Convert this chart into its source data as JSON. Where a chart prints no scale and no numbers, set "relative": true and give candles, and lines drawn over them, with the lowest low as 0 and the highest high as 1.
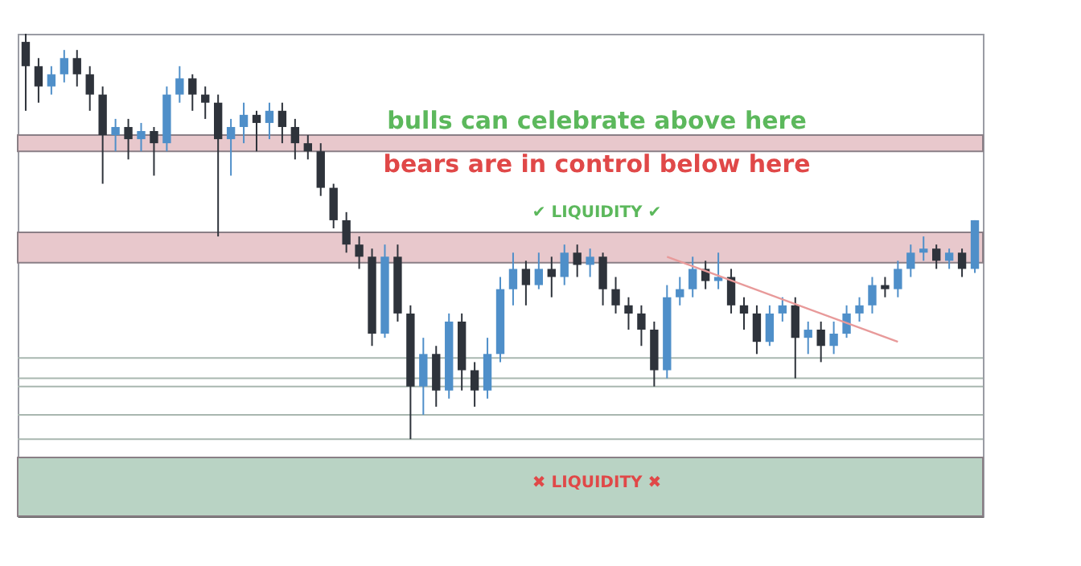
{
  "chart_data": {
    "type": "candlestick",
    "relative": true,
    "tick_labels": false,
    "grid": false,
    "categories": [
      null,
      null,
      null,
      null,
      null,
      null,
      null,
      null,
      null,
      null,
      null,
      null,
      null,
      null,
      null,
      null,
      null,
      null,
      null,
      null,
      null,
      null,
      null,
      null,
      null,
      null,
      null,
      null,
      null,
      null,
      null,
      null,
      null,
      null,
      null,
      null,
      null,
      null,
      null,
      null,
      null,
      null,
      null,
      null,
      null,
      null,
      null,
      null,
      null,
      null,
      null,
      null,
      null,
      null,
      null,
      null,
      null,
      null,
      null,
      null,
      null,
      null,
      null,
      null,
      null,
      null,
      null,
      null,
      null,
      null,
      null,
      null,
      null,
      null,
      null
    ],
    "ohlc": [
      [
        0.98,
        1.0,
        0.81,
        0.92
      ],
      [
        0.92,
        0.94,
        0.83,
        0.87
      ],
      [
        0.87,
        0.92,
        0.85,
        0.9
      ],
      [
        0.9,
        0.96,
        0.88,
        0.94
      ],
      [
        0.94,
        0.96,
        0.87,
        0.9
      ],
      [
        0.9,
        0.92,
        0.81,
        0.85
      ],
      [
        0.85,
        0.87,
        0.63,
        0.75
      ],
      [
        0.75,
        0.79,
        0.71,
        0.77
      ],
      [
        0.77,
        0.79,
        0.69,
        0.74
      ],
      [
        0.74,
        0.78,
        0.71,
        0.76
      ],
      [
        0.76,
        0.77,
        0.65,
        0.73
      ],
      [
        0.73,
        0.87,
        0.71,
        0.85
      ],
      [
        0.85,
        0.92,
        0.83,
        0.89
      ],
      [
        0.89,
        0.9,
        0.81,
        0.85
      ],
      [
        0.85,
        0.87,
        0.79,
        0.83
      ],
      [
        0.83,
        0.85,
        0.5,
        0.74
      ],
      [
        0.74,
        0.79,
        0.65,
        0.77
      ],
      [
        0.77,
        0.83,
        0.73,
        0.8
      ],
      [
        0.8,
        0.81,
        0.71,
        0.78
      ],
      [
        0.78,
        0.83,
        0.74,
        0.81
      ],
      [
        0.81,
        0.83,
        0.73,
        0.77
      ],
      [
        0.77,
        0.79,
        0.69,
        0.73
      ],
      [
        0.73,
        0.75,
        0.69,
        0.71
      ],
      [
        0.71,
        0.73,
        0.6,
        0.62
      ],
      [
        0.62,
        0.63,
        0.52,
        0.54
      ],
      [
        0.54,
        0.56,
        0.46,
        0.48
      ],
      [
        0.48,
        0.5,
        0.42,
        0.45
      ],
      [
        0.45,
        0.47,
        0.23,
        0.26
      ],
      [
        0.26,
        0.48,
        0.25,
        0.45
      ],
      [
        0.45,
        0.48,
        0.29,
        0.31
      ],
      [
        0.31,
        0.33,
        0.0,
        0.13
      ],
      [
        0.13,
        0.25,
        0.06,
        0.21
      ],
      [
        0.21,
        0.23,
        0.08,
        0.12
      ],
      [
        0.12,
        0.31,
        0.1,
        0.29
      ],
      [
        0.29,
        0.31,
        0.12,
        0.17
      ],
      [
        0.17,
        0.19,
        0.08,
        0.12
      ],
      [
        0.12,
        0.25,
        0.1,
        0.21
      ],
      [
        0.21,
        0.4,
        0.19,
        0.37
      ],
      [
        0.37,
        0.46,
        0.33,
        0.42
      ],
      [
        0.42,
        0.44,
        0.33,
        0.38
      ],
      [
        0.38,
        0.46,
        0.37,
        0.42
      ],
      [
        0.42,
        0.45,
        0.35,
        0.4
      ],
      [
        0.4,
        0.48,
        0.38,
        0.46
      ],
      [
        0.46,
        0.48,
        0.4,
        0.43
      ],
      [
        0.43,
        0.47,
        0.4,
        0.45
      ],
      [
        0.45,
        0.46,
        0.33,
        0.37
      ],
      [
        0.37,
        0.4,
        0.31,
        0.33
      ],
      [
        0.33,
        0.35,
        0.27,
        0.31
      ],
      [
        0.31,
        0.33,
        0.23,
        0.27
      ],
      [
        0.27,
        0.29,
        0.13,
        0.17
      ],
      [
        0.17,
        0.38,
        0.15,
        0.35
      ],
      [
        0.35,
        0.4,
        0.33,
        0.37
      ],
      [
        0.37,
        0.45,
        0.35,
        0.42
      ],
      [
        0.42,
        0.44,
        0.37,
        0.39
      ],
      [
        0.39,
        0.46,
        0.37,
        0.4
      ],
      [
        0.4,
        0.42,
        0.31,
        0.33
      ],
      [
        0.33,
        0.35,
        0.27,
        0.31
      ],
      [
        0.31,
        0.33,
        0.21,
        0.24
      ],
      [
        0.24,
        0.33,
        0.23,
        0.31
      ],
      [
        0.31,
        0.35,
        0.29,
        0.33
      ],
      [
        0.33,
        0.35,
        0.15,
        0.25
      ],
      [
        0.25,
        0.29,
        0.21,
        0.27
      ],
      [
        0.27,
        0.29,
        0.19,
        0.23
      ],
      [
        0.23,
        0.29,
        0.21,
        0.26
      ],
      [
        0.26,
        0.33,
        0.25,
        0.31
      ],
      [
        0.31,
        0.35,
        0.29,
        0.33
      ],
      [
        0.33,
        0.4,
        0.31,
        0.38
      ],
      [
        0.38,
        0.4,
        0.35,
        0.37
      ],
      [
        0.37,
        0.44,
        0.35,
        0.42
      ],
      [
        0.42,
        0.48,
        0.4,
        0.46
      ],
      [
        0.46,
        0.5,
        0.44,
        0.47
      ],
      [
        0.47,
        0.48,
        0.42,
        0.44
      ],
      [
        0.44,
        0.47,
        0.42,
        0.46
      ],
      [
        0.46,
        0.47,
        0.4,
        0.42
      ],
      [
        0.42,
        0.54,
        0.41,
        0.54
      ]
    ],
    "series": [
      {
        "type": "line",
        "color": "#e89a9a",
        "values": [
          null,
          null,
          null,
          null,
          null,
          null,
          null,
          null,
          null,
          null,
          null,
          null,
          null,
          null,
          null,
          null,
          null,
          null,
          null,
          null,
          null,
          null,
          null,
          null,
          null,
          null,
          null,
          null,
          null,
          null,
          null,
          null,
          null,
          null,
          null,
          null,
          null,
          null,
          null,
          null,
          null,
          null,
          null,
          null,
          null,
          null,
          null,
          null,
          null,
          null,
          0.45,
          null,
          null,
          null,
          null,
          null,
          null,
          null,
          null,
          null,
          null,
          null,
          null,
          null,
          null,
          null,
          null,
          null,
          0.24,
          null,
          null,
          null,
          null,
          null,
          null
        ]
      }
    ],
    "bands": [
      {
        "axis": "y",
        "from": 0.71,
        "to": 0.75,
        "color": "#e8c8cc"
      },
      {
        "axis": "y",
        "from": 0.435,
        "to": 0.51,
        "color": "#e8c8cc"
      },
      {
        "axis": "y",
        "from": -0.19,
        "to": -0.045,
        "color": "#b9d3c4"
      }
    ],
    "ref_lines": [
      {
        "axis": "y",
        "value": 0.2,
        "color": "#a9b7b0"
      },
      {
        "axis": "y",
        "value": 0.15,
        "color": "#a9b7b0"
      },
      {
        "axis": "y",
        "value": 0.13,
        "color": "#a9b7b0"
      },
      {
        "axis": "y",
        "value": 0.06,
        "color": "#a9b7b0"
      },
      {
        "axis": "y",
        "value": 0.0,
        "color": "#a9b7b0"
      }
    ],
    "annotations": [
      "bulls can celebrate above here",
      "bears are in control below here",
      "✔ LIQUIDITY ✔",
      "✖ LIQUIDITY ✖"
    ]
  }
}
